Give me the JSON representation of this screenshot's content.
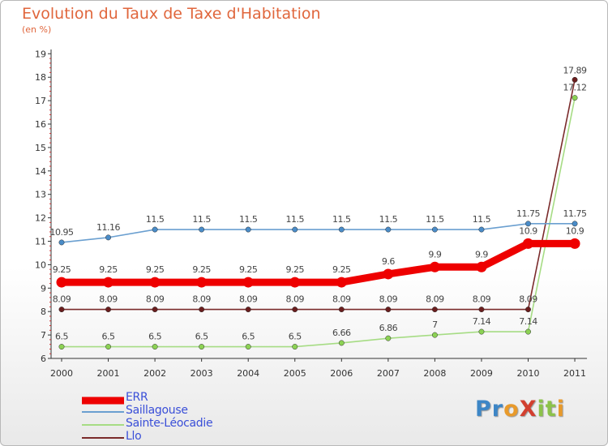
{
  "title": "Evolution du Taux de Taxe d'Habitation",
  "subtitle": "(en %)",
  "logo": {
    "text": "ProXiti",
    "letters": [
      {
        "ch": "P",
        "color": "#3d86c6"
      },
      {
        "ch": "r",
        "color": "#3d86c6"
      },
      {
        "ch": "o",
        "color": "#e89a2b"
      },
      {
        "ch": "X",
        "color": "#d23f2f"
      },
      {
        "ch": "i",
        "color": "#8cc24a"
      },
      {
        "ch": "t",
        "color": "#8cc24a"
      },
      {
        "ch": "i",
        "color": "#e89a2b"
      }
    ]
  },
  "chart_data": {
    "type": "line",
    "title": "Evolution du Taux de Taxe d'Habitation",
    "subtitle": "(en %)",
    "x": [
      "2000",
      "2001",
      "2002",
      "2003",
      "2004",
      "2005",
      "2006",
      "2007",
      "2008",
      "2009",
      "2010",
      "2011"
    ],
    "ylim": [
      6,
      19
    ],
    "yticks": [
      "6",
      "7",
      "8",
      "9",
      "10",
      "11",
      "12",
      "13",
      "14",
      "15",
      "16",
      "17",
      "18",
      "19"
    ],
    "grid": false,
    "legend_position": "bottom-left",
    "series": [
      {
        "name": "ERR",
        "color": "#ee0000",
        "values": [
          9.25,
          9.25,
          9.25,
          9.25,
          9.25,
          9.25,
          9.25,
          9.6,
          9.9,
          9.9,
          10.9,
          10.9
        ],
        "labels": [
          "9.25",
          "9.25",
          "9.25",
          "9.25",
          "9.25",
          "9.25",
          "9.25",
          "9.6",
          "9.9",
          "9.9",
          "10.9",
          "10.9"
        ]
      },
      {
        "name": "Saillagouse",
        "color": "#6a9fd0",
        "values": [
          10.95,
          11.16,
          11.5,
          11.5,
          11.5,
          11.5,
          11.5,
          11.5,
          11.5,
          11.5,
          11.75,
          11.75
        ],
        "labels": [
          "10.95",
          "11.16",
          "11.5",
          "11.5",
          "11.5",
          "11.5",
          "11.5",
          "11.5",
          "11.5",
          "11.5",
          "11.75",
          "11.75"
        ]
      },
      {
        "name": "Sainte-Léocadie",
        "color": "#a6dc84",
        "values": [
          6.5,
          6.5,
          6.5,
          6.5,
          6.5,
          6.5,
          6.66,
          6.86,
          7,
          7.14,
          7.14,
          17.12
        ],
        "labels": [
          "6.5",
          "6.5",
          "6.5",
          "6.5",
          "6.5",
          "6.5",
          "6.66",
          "6.86",
          "7",
          "7.14",
          "7.14",
          "17.12"
        ]
      },
      {
        "name": "Llo",
        "color": "#7a2b2b",
        "values": [
          8.09,
          8.09,
          8.09,
          8.09,
          8.09,
          8.09,
          8.09,
          8.09,
          8.09,
          8.09,
          8.09,
          17.89
        ],
        "labels": [
          "8.09",
          "8.09",
          "8.09",
          "8.09",
          "8.09",
          "8.09",
          "8.09",
          "8.09",
          "8.09",
          "8.09",
          "8.09",
          "17.89"
        ]
      }
    ]
  }
}
